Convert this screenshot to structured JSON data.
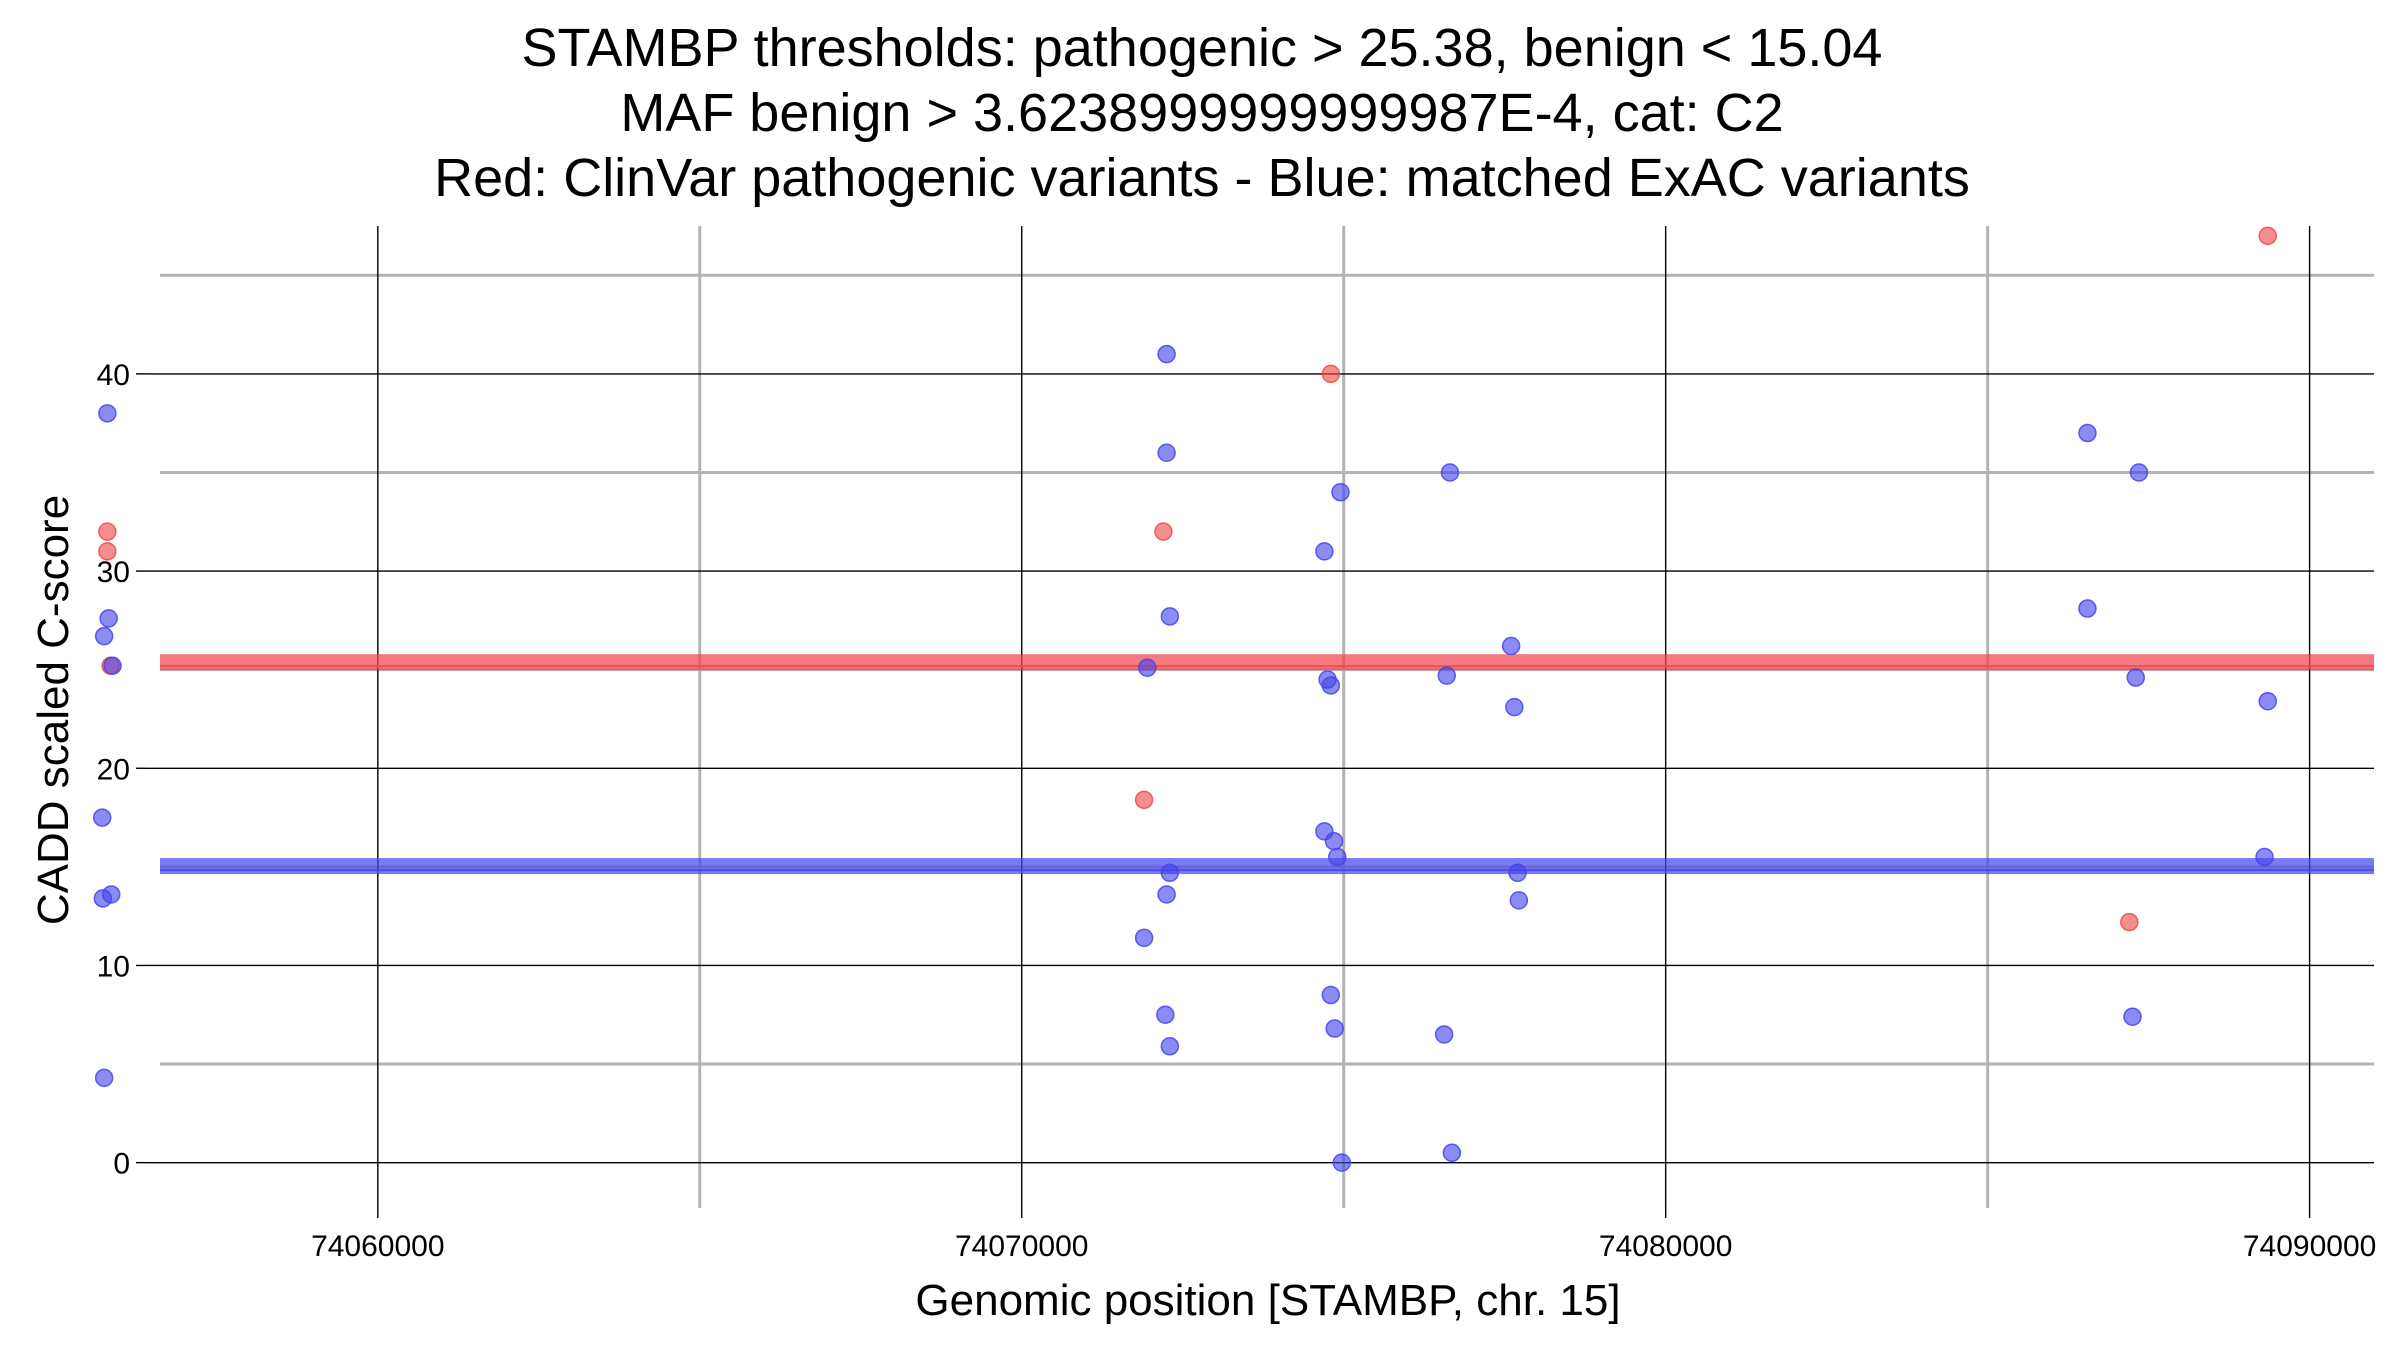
{
  "chart_data": {
    "type": "scatter",
    "title": [
      "STAMBP thresholds: pathogenic > 25.38, benign < 15.04",
      "MAF benign > 3.6238999999999987E-4, cat: C2",
      "Red: ClinVar pathogenic variants - Blue: matched ExAC variants"
    ],
    "xlabel": "Genomic position [STAMBP, chr. 15]",
    "ylabel": "CADD scaled C-score",
    "xlim": [
      74056400,
      74091000
    ],
    "ylim": [
      -2.3,
      47.5
    ],
    "x_ticks": [
      74060000,
      74070000,
      74080000,
      74090000
    ],
    "x_tick_labels": [
      "74060000",
      "74070000",
      "74080000",
      "74090000"
    ],
    "x_minor_ticks": [
      74065000,
      74075000,
      74085000
    ],
    "y_ticks": [
      0,
      10,
      20,
      30,
      40
    ],
    "y_tick_labels": [
      "0",
      "10",
      "20",
      "30",
      "40"
    ],
    "y_minor_ticks": [
      5,
      15,
      25,
      35,
      45
    ],
    "grid": true,
    "thresholds": [
      {
        "name": "pathogenic",
        "value": 25.38,
        "color": "#f0474f"
      },
      {
        "name": "benign",
        "value": 15.04,
        "color": "#4747ee"
      }
    ],
    "series": [
      {
        "color": "#f04848",
        "x": [
          74055800,
          74055800,
          74055850,
          74071900,
          74072200,
          74074800,
          74087200,
          74089350
        ],
        "y": [
          32,
          31,
          25.2,
          18.4,
          32,
          40,
          12.2,
          47
        ]
      },
      {
        "color": "#4444ee",
        "x": [
          74055800,
          74055820,
          74055750,
          74055880,
          74055720,
          74055730,
          74055860,
          74055750,
          74072250,
          74072250,
          74072300,
          74071950,
          74072300,
          74072250,
          74071900,
          74072230,
          74072300,
          74074950,
          74074700,
          74074750,
          74074800,
          74074700,
          74074850,
          74074900,
          74074800,
          74074860,
          74074970,
          74076650,
          74076600,
          74076560,
          74076680,
          74077600,
          74077650,
          74077700,
          74077720,
          74086550,
          74086550,
          74087350,
          74087300,
          74087250,
          74089350,
          74089300
        ],
        "y": [
          38,
          27.6,
          26.7,
          25.2,
          17.5,
          13.4,
          13.6,
          4.3,
          41,
          36,
          27.7,
          25.1,
          14.7,
          13.6,
          11.4,
          7.5,
          5.9,
          34,
          31,
          24.5,
          24.2,
          16.8,
          16.3,
          15.5,
          8.5,
          6.8,
          0,
          35,
          24.7,
          6.5,
          0.5,
          26.2,
          23.1,
          14.7,
          13.3,
          37,
          28.1,
          35,
          24.6,
          7.4,
          23.4,
          15.5
        ]
      }
    ]
  }
}
